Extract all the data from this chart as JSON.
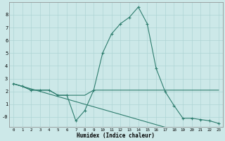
{
  "xlabel": "Humidex (Indice chaleur)",
  "x": [
    0,
    1,
    2,
    3,
    4,
    5,
    6,
    7,
    8,
    9,
    10,
    11,
    12,
    13,
    14,
    15,
    16,
    17,
    18,
    19,
    20,
    21,
    22,
    23
  ],
  "line1": [
    2.6,
    2.4,
    2.1,
    2.1,
    2.1,
    1.7,
    1.7,
    -0.3,
    0.5,
    2.1,
    5.0,
    6.5,
    7.3,
    7.8,
    8.6,
    7.3,
    3.8,
    2.0,
    0.9,
    -0.1,
    -0.1,
    -0.2,
    -0.3,
    -0.5
  ],
  "line2": [
    2.6,
    2.4,
    2.1,
    2.1,
    2.1,
    1.7,
    1.7,
    1.7,
    1.7,
    2.1,
    2.1,
    2.1,
    2.1,
    2.1,
    2.1,
    2.1,
    2.1,
    2.1,
    2.1,
    2.1,
    2.1,
    2.1,
    2.1,
    2.1
  ],
  "line3": [
    2.6,
    2.4,
    2.2,
    2.0,
    1.8,
    1.6,
    1.4,
    1.2,
    1.0,
    0.8,
    0.6,
    0.4,
    0.2,
    0.0,
    -0.2,
    -0.4,
    -0.6,
    -0.8,
    -1.0,
    -1.2,
    -1.4,
    -1.6,
    -1.8,
    -2.0
  ],
  "color": "#2e7d6e",
  "bg_color": "#cce8e8",
  "grid_color": "#aed4d4",
  "ylim": [
    -0.8,
    9.0
  ],
  "yticks": [
    0,
    1,
    2,
    3,
    4,
    5,
    6,
    7,
    8
  ],
  "ytick_labels": [
    "-0",
    "1",
    "2",
    "3",
    "4",
    "5",
    "6",
    "7",
    "8"
  ],
  "xlim": [
    -0.5,
    23.5
  ],
  "xticks": [
    0,
    1,
    2,
    3,
    4,
    5,
    6,
    7,
    8,
    9,
    10,
    11,
    12,
    13,
    14,
    15,
    16,
    17,
    18,
    19,
    20,
    21,
    22,
    23
  ]
}
